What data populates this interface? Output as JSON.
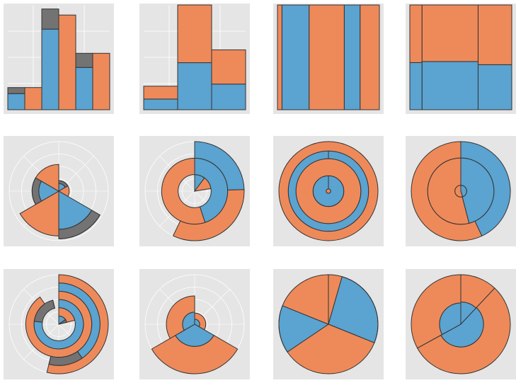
{
  "chart_data": [
    {
      "type": "bar",
      "coord": "cartesian",
      "ylim": [
        0,
        5.2
      ],
      "series": [
        {
          "color": "#5ba3d0",
          "values": [
            0.8,
            0,
            4.0,
            0,
            2.1,
            0
          ]
        },
        {
          "color": "#737373",
          "values": [
            0.3,
            0,
            1.0,
            0,
            0.7,
            0
          ]
        },
        {
          "color": "#ee8a5a",
          "values": [
            0,
            1.1,
            0,
            4.7,
            0,
            2.8
          ]
        }
      ]
    },
    {
      "type": "bar",
      "coord": "cartesian",
      "ylim": [
        0,
        4.9
      ],
      "series": [
        {
          "color": "#5ba3d0",
          "values": [
            0.5,
            2.2,
            1.2
          ]
        },
        {
          "color": "#ee8a5a",
          "values": [
            0.6,
            2.7,
            1.6
          ]
        }
      ]
    },
    {
      "type": "bar",
      "coord": "cartesian",
      "ylim": [
        0,
        1
      ],
      "widths": [
        0.04,
        0.24,
        0.31,
        0.14,
        0.17
      ],
      "series": [
        {
          "color": "#5ba3d0",
          "values": [
            0,
            1,
            0,
            1,
            0
          ]
        },
        {
          "color": "#ee8a5a",
          "values": [
            1,
            0,
            1,
            0,
            1
          ]
        }
      ]
    },
    {
      "type": "bar",
      "coord": "cartesian",
      "ylim": [
        0,
        1
      ],
      "widths": [
        0.12,
        0.55,
        0.33
      ],
      "series": [
        {
          "color": "#5ba3d0",
          "values": [
            0.45,
            0.46,
            0.43
          ]
        },
        {
          "color": "#ee8a5a",
          "values": [
            0.55,
            0.54,
            0.57
          ]
        }
      ]
    },
    {
      "type": "bar",
      "coord": "polar-x",
      "ylim": [
        0,
        5.2
      ],
      "series": [
        {
          "color": "#5ba3d0",
          "values": [
            0.8,
            0,
            4.0,
            0,
            2.1,
            0
          ]
        },
        {
          "color": "#737373",
          "values": [
            0.3,
            0,
            1.0,
            0,
            0.7,
            0
          ]
        },
        {
          "color": "#ee8a5a",
          "values": [
            0,
            1.1,
            0,
            4.7,
            0,
            2.8
          ]
        }
      ]
    },
    {
      "type": "bar",
      "coord": "polar-y",
      "ylim": [
        0,
        4.9
      ],
      "series": [
        {
          "color": "#5ba3d0",
          "values": [
            0.5,
            2.2,
            1.2
          ]
        },
        {
          "color": "#ee8a5a",
          "values": [
            0.6,
            2.7,
            1.6
          ]
        }
      ]
    },
    {
      "type": "bar",
      "coord": "polar-y",
      "ylim": [
        0,
        1
      ],
      "widths": [
        0.04,
        0.24,
        0.31,
        0.14,
        0.17
      ],
      "series": [
        {
          "color": "#5ba3d0",
          "values": [
            0,
            1,
            0,
            1,
            0
          ]
        },
        {
          "color": "#ee8a5a",
          "values": [
            1,
            0,
            1,
            0,
            1
          ]
        }
      ]
    },
    {
      "type": "bar",
      "coord": "polar-y",
      "ylim": [
        0,
        1
      ],
      "widths": [
        0.12,
        0.55,
        0.33
      ],
      "series": [
        {
          "color": "#5ba3d0",
          "values": [
            0.45,
            0.46,
            0.43
          ]
        },
        {
          "color": "#ee8a5a",
          "values": [
            0.55,
            0.54,
            0.57
          ]
        }
      ]
    },
    {
      "type": "bar",
      "coord": "polar-y",
      "ylim": [
        0,
        5.2
      ],
      "series": [
        {
          "color": "#5ba3d0",
          "values": [
            0.8,
            0,
            4.0,
            0,
            2.1,
            0
          ]
        },
        {
          "color": "#737373",
          "values": [
            0.3,
            0,
            1.0,
            0,
            0.7,
            0
          ]
        },
        {
          "color": "#ee8a5a",
          "values": [
            0,
            1.1,
            0,
            4.7,
            0,
            2.8
          ]
        }
      ]
    },
    {
      "type": "bar",
      "coord": "polar-x",
      "ylim": [
        0,
        4.9
      ],
      "series": [
        {
          "color": "#5ba3d0",
          "values": [
            0.5,
            2.2,
            1.2
          ]
        },
        {
          "color": "#ee8a5a",
          "values": [
            0.6,
            2.7,
            1.6
          ]
        }
      ]
    },
    {
      "type": "bar",
      "coord": "polar-x",
      "ylim": [
        0,
        1
      ],
      "widths": [
        0.04,
        0.24,
        0.31,
        0.14,
        0.17
      ],
      "series": [
        {
          "color": "#5ba3d0",
          "values": [
            0,
            1,
            0,
            1,
            0
          ]
        },
        {
          "color": "#ee8a5a",
          "values": [
            1,
            0,
            1,
            0,
            1
          ]
        }
      ]
    },
    {
      "type": "bar",
      "coord": "polar-x",
      "ylim": [
        0,
        1
      ],
      "widths": [
        0.12,
        0.55,
        0.33
      ],
      "series": [
        {
          "color": "#5ba3d0",
          "values": [
            0.45,
            0.46,
            0.43
          ]
        },
        {
          "color": "#ee8a5a",
          "values": [
            0.55,
            0.54,
            0.57
          ]
        }
      ]
    }
  ]
}
